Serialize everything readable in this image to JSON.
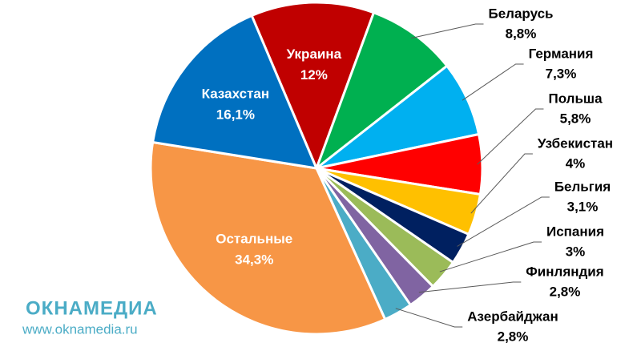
{
  "chart_data": {
    "type": "pie",
    "categories": [
      "Украина",
      "Беларусь",
      "Германия",
      "Польша",
      "Узбекистан",
      "Бельгия",
      "Испания",
      "Финляндия",
      "Азербайджан",
      "Остальные",
      "Казахстан"
    ],
    "values": [
      12,
      8.8,
      7.3,
      5.8,
      4,
      3.1,
      3,
      2.8,
      2.8,
      34.3,
      16.1
    ],
    "value_labels": [
      "12%",
      "8,8%",
      "7,3%",
      "5,8%",
      "4%",
      "3,1%",
      "3%",
      "2,8%",
      "2,8%",
      "34,3%",
      "16,1%"
    ],
    "colors": [
      "#c00000",
      "#00b050",
      "#00b0f0",
      "#ff0000",
      "#ffc000",
      "#002060",
      "#9bbb59",
      "#8064a2",
      "#4bacc6",
      "#f79646",
      "#0070c0"
    ]
  },
  "watermark": {
    "brand": "ОКНАМЕДИА",
    "url": "www.oknamedia.ru"
  }
}
